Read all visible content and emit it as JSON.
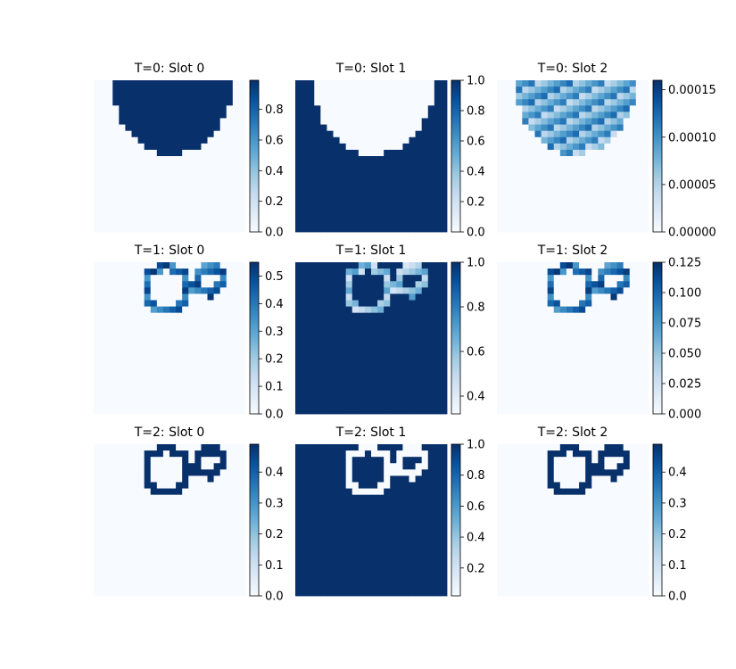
{
  "colors": {
    "cmap_low": "#f7fbff",
    "cmap_high": "#08306b",
    "colormap": "Blues"
  },
  "chart_data": {
    "type": "heatmap",
    "grid": {
      "rows": 3,
      "cols": 3
    },
    "panels": [
      {
        "title": "T=0: Slot 0",
        "pattern": "disk_fill",
        "vmax": 0.99,
        "colorbar_ticks": [
          {
            "value": 0.0,
            "label": "0.0"
          },
          {
            "value": 0.2,
            "label": "0.2"
          },
          {
            "value": 0.4,
            "label": "0.4"
          },
          {
            "value": 0.6,
            "label": "0.6"
          },
          {
            "value": 0.8,
            "label": "0.8"
          }
        ],
        "colorbar_range": [
          0.0,
          0.99
        ]
      },
      {
        "title": "T=0: Slot 1",
        "pattern": "disk_inverse",
        "colorbar_ticks": [
          {
            "value": 0.0,
            "label": "0.0"
          },
          {
            "value": 0.2,
            "label": "0.2"
          },
          {
            "value": 0.4,
            "label": "0.4"
          },
          {
            "value": 0.6,
            "label": "0.6"
          },
          {
            "value": 0.8,
            "label": "0.8"
          },
          {
            "value": 1.0,
            "label": "1.0"
          }
        ],
        "colorbar_range": [
          0.0,
          1.0
        ]
      },
      {
        "title": "T=0: Slot 2",
        "pattern": "disk_textured",
        "colorbar_ticks": [
          {
            "value": 0.0,
            "label": "0.00000"
          },
          {
            "value": 5e-05,
            "label": "0.00005"
          },
          {
            "value": 0.0001,
            "label": "0.00010"
          },
          {
            "value": 0.00015,
            "label": "0.00015"
          }
        ],
        "colorbar_range": [
          0.0,
          0.00016
        ]
      },
      {
        "title": "T=1: Slot 0",
        "pattern": "rings",
        "colorbar_ticks": [
          {
            "value": 0.0,
            "label": "0.0"
          },
          {
            "value": 0.1,
            "label": "0.1"
          },
          {
            "value": 0.2,
            "label": "0.2"
          },
          {
            "value": 0.3,
            "label": "0.3"
          },
          {
            "value": 0.4,
            "label": "0.4"
          },
          {
            "value": 0.5,
            "label": "0.5"
          }
        ],
        "colorbar_range": [
          0.0,
          0.55
        ]
      },
      {
        "title": "T=1: Slot 1",
        "pattern": "rings_inverse",
        "colorbar_ticks": [
          {
            "value": 0.4,
            "label": "0.4"
          },
          {
            "value": 0.6,
            "label": "0.6"
          },
          {
            "value": 0.8,
            "label": "0.8"
          },
          {
            "value": 1.0,
            "label": "1.0"
          }
        ],
        "colorbar_range": [
          0.32,
          1.0
        ]
      },
      {
        "title": "T=1: Slot 2",
        "pattern": "rings",
        "colorbar_ticks": [
          {
            "value": 0.0,
            "label": "0.000"
          },
          {
            "value": 0.025,
            "label": "0.025"
          },
          {
            "value": 0.05,
            "label": "0.050"
          },
          {
            "value": 0.075,
            "label": "0.075"
          },
          {
            "value": 0.1,
            "label": "0.100"
          },
          {
            "value": 0.125,
            "label": "0.125"
          }
        ],
        "colorbar_range": [
          0.0,
          0.125
        ]
      },
      {
        "title": "T=2: Slot 0",
        "pattern": "rings_sharp",
        "colorbar_ticks": [
          {
            "value": 0.0,
            "label": "0.0"
          },
          {
            "value": 0.1,
            "label": "0.1"
          },
          {
            "value": 0.2,
            "label": "0.2"
          },
          {
            "value": 0.3,
            "label": "0.3"
          },
          {
            "value": 0.4,
            "label": "0.4"
          }
        ],
        "colorbar_range": [
          0.0,
          0.49
        ]
      },
      {
        "title": "T=2: Slot 1",
        "pattern": "rings_inverse_sharp",
        "colorbar_ticks": [
          {
            "value": 0.2,
            "label": "0.2"
          },
          {
            "value": 0.4,
            "label": "0.4"
          },
          {
            "value": 0.6,
            "label": "0.6"
          },
          {
            "value": 0.8,
            "label": "0.8"
          },
          {
            "value": 1.0,
            "label": "1.0"
          }
        ],
        "colorbar_range": [
          0.02,
          1.0
        ]
      },
      {
        "title": "T=2: Slot 2",
        "pattern": "rings_sharp",
        "colorbar_ticks": [
          {
            "value": 0.0,
            "label": "0.0"
          },
          {
            "value": 0.1,
            "label": "0.1"
          },
          {
            "value": 0.2,
            "label": "0.2"
          },
          {
            "value": 0.3,
            "label": "0.3"
          },
          {
            "value": 0.4,
            "label": "0.4"
          }
        ],
        "colorbar_range": [
          0.0,
          0.49
        ]
      }
    ]
  }
}
